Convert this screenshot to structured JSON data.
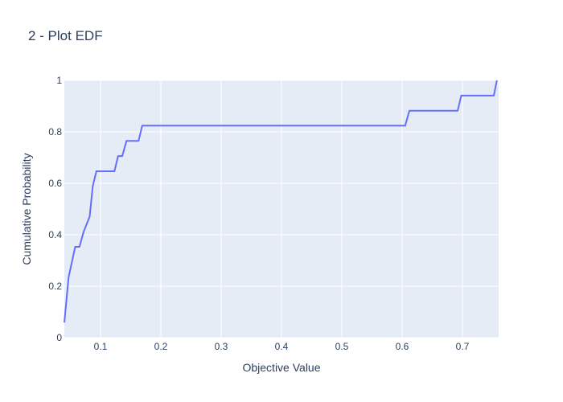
{
  "chart_data": {
    "type": "line",
    "title": "2 - Plot EDF",
    "xlabel": "Objective Value",
    "ylabel": "Cumulative Probability",
    "xlim": [
      0.04,
      0.76
    ],
    "ylim": [
      0,
      1
    ],
    "x_ticks": [
      0.1,
      0.2,
      0.3,
      0.4,
      0.5,
      0.6,
      0.7
    ],
    "x_tick_labels": [
      "0.1",
      "0.2",
      "0.3",
      "0.4",
      "0.5",
      "0.6",
      "0.7"
    ],
    "y_ticks": [
      0,
      0.2,
      0.4,
      0.6,
      0.8,
      1
    ],
    "y_tick_labels": [
      "0",
      "0.2",
      "0.4",
      "0.6",
      "0.8",
      "1"
    ],
    "grid": true,
    "series": [
      {
        "color": "#636efa",
        "x": [
          0.04,
          0.047,
          0.058,
          0.065,
          0.072,
          0.082,
          0.087,
          0.093,
          0.123,
          0.129,
          0.136,
          0.143,
          0.156,
          0.163,
          0.169,
          0.605,
          0.612,
          0.692,
          0.698,
          0.752,
          0.757
        ],
        "y": [
          0.059,
          0.235,
          0.353,
          0.353,
          0.412,
          0.471,
          0.588,
          0.647,
          0.647,
          0.706,
          0.706,
          0.765,
          0.765,
          0.765,
          0.824,
          0.824,
          0.882,
          0.882,
          0.941,
          0.941,
          1.0
        ]
      }
    ]
  }
}
